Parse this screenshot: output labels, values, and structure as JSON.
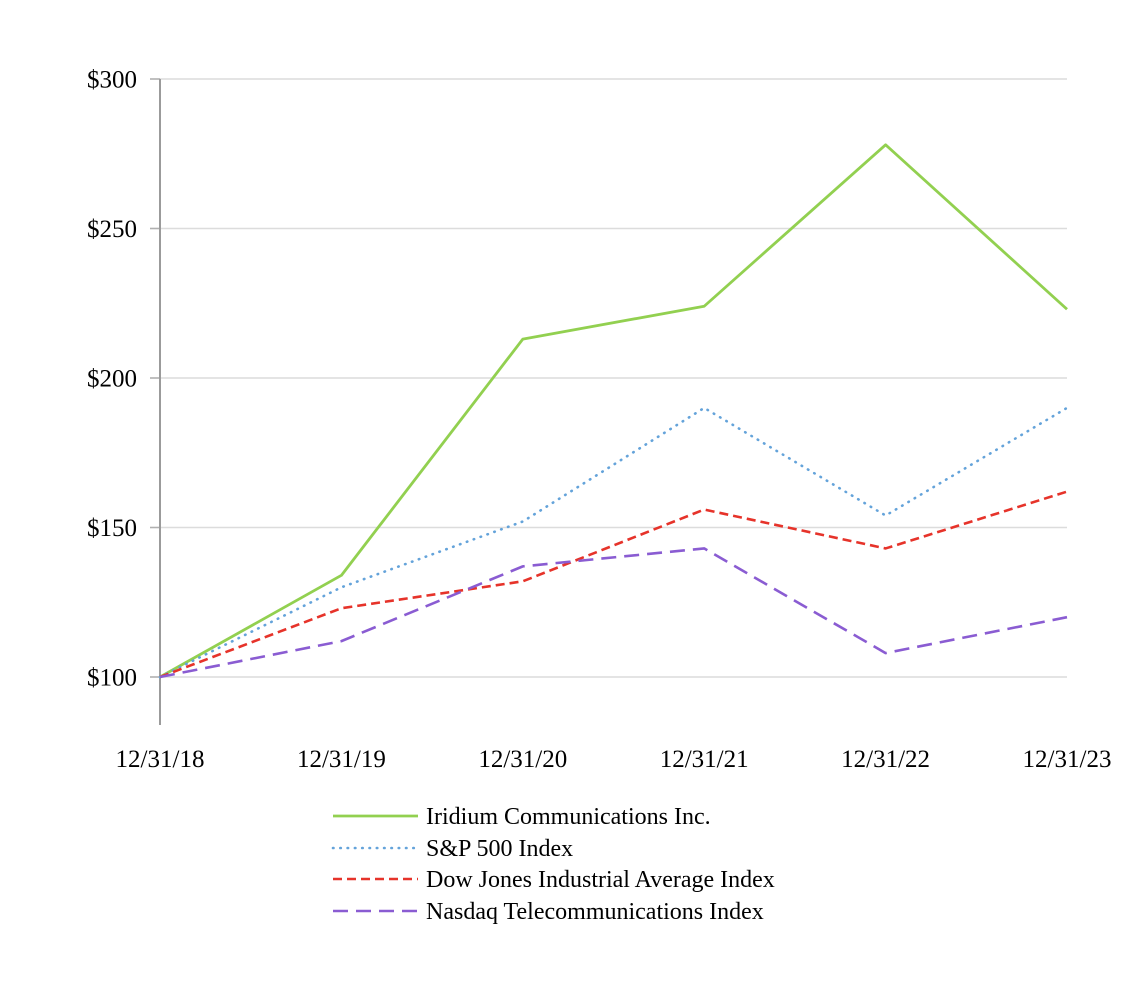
{
  "page": {
    "background": "#ffffff"
  },
  "chart_data": {
    "type": "line",
    "title": "",
    "categories": [
      "12/31/18",
      "12/31/19",
      "12/31/20",
      "12/31/21",
      "12/31/22",
      "12/31/23"
    ],
    "series": [
      {
        "name": "Iridium Communications Inc.",
        "color": "#92d050",
        "style": "solid",
        "values": [
          100,
          134,
          213,
          224,
          278,
          223
        ]
      },
      {
        "name": "S&P 500 Index",
        "color": "#64a3da",
        "style": "dotted",
        "values": [
          100,
          130,
          152,
          190,
          154,
          190
        ]
      },
      {
        "name": "Dow Jones Industrial Average Index",
        "color": "#e6332a",
        "style": "dashed",
        "values": [
          100,
          123,
          132,
          156,
          143,
          162
        ]
      },
      {
        "name": "Nasdaq Telecommunications Index",
        "color": "#8a5cd2",
        "style": "long-dash",
        "values": [
          100,
          112,
          137,
          143,
          108,
          120
        ]
      }
    ],
    "y_axis": {
      "min": 100,
      "max": 300,
      "step": 50,
      "prefix": "$",
      "tick_labels": [
        "$100",
        "$150",
        "$200",
        "$250",
        "$300"
      ]
    },
    "x_axis": {
      "tick_labels": [
        "12/31/18",
        "12/31/19",
        "12/31/20",
        "12/31/21",
        "12/31/22",
        "12/31/23"
      ]
    },
    "grid": true,
    "legend_position": "bottom",
    "colors": {
      "gridline": "#dcdcdc",
      "axis": "#9b9b9b",
      "tick": "#b0b0b0",
      "text": "#000000"
    }
  }
}
